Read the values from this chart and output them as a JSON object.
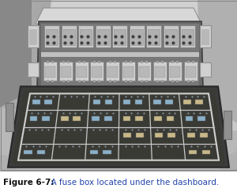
{
  "fig_width": 3.0,
  "fig_height": 2.48,
  "dpi": 100,
  "caption_bold": "Figure 6-7:",
  "caption_rest": "  A fuse box located under the dashboard.",
  "caption_fontsize": 7.5,
  "bg_color": "#ffffff",
  "border_color": "#555555",
  "caption_color": "#2244aa",
  "caption_bold_color": "#111111",
  "img_border_color": "#888888",
  "dashboard_bg": "#c0c0c0",
  "dashboard_dark": "#888888",
  "dashboard_mid": "#aaaaaa",
  "fuse_upper_bg": "#808080",
  "fuse_upper_dark": "#505050",
  "relay_light": "#d8d8d8",
  "relay_mid": "#b8b8b8",
  "relay_dark": "#909090",
  "lid_outer": "#404040",
  "lid_inner": "#353530",
  "lid_grid": "#d8d8d8",
  "fuse_blue": "#8ab0c8",
  "fuse_tan": "#c8b888",
  "fuse_white": "#d0d0d0"
}
